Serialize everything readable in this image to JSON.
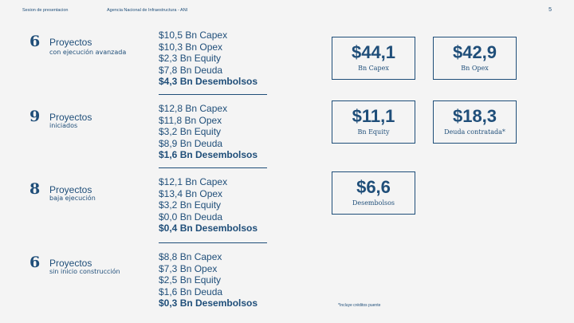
{
  "header": {
    "section": "Sesion de presentacion",
    "agency": "Agencia Nacional de Infraestructura - ANI",
    "page": "5"
  },
  "projects": [
    {
      "count": "6",
      "title": "Proyectos",
      "subtitle": "con ejecución avanzada",
      "capex": "$10,5 Bn Capex",
      "opex": "$10,3 Bn Opex",
      "equity": "$2,3 Bn Equity",
      "debt": "$7,8 Bn Deuda",
      "disb": "$4,3 Bn Desembolsos"
    },
    {
      "count": "9",
      "title": "Proyectos",
      "subtitle": "iniciados",
      "capex": "$12,8 Bn Capex",
      "opex": "$11,8 Bn Opex",
      "equity": "$3,2 Bn Equity",
      "debt": "$8,9 Bn Deuda",
      "disb": "$1,6 Bn Desembolsos"
    },
    {
      "count": "8",
      "title": "Proyectos",
      "subtitle": "baja ejecución",
      "capex": "$12,1 Bn Capex",
      "opex": "$13,4 Bn Opex",
      "equity": "$3,2 Bn Equity",
      "debt": "$0,0 Bn Deuda",
      "disb": "$0,4 Bn Desembolsos"
    },
    {
      "count": "6",
      "title": "Proyectos",
      "subtitle": "sin inicio construcción",
      "capex": "$8,8 Bn Capex",
      "opex": "$7,3 Bn Opex",
      "equity": "$2,5 Bn Equity",
      "debt": "$1,6 Bn Deuda",
      "disb": "$0,3 Bn Desembolsos"
    }
  ],
  "totals": {
    "capex": {
      "value": "$44,1",
      "label": "Bn Capex"
    },
    "opex": {
      "value": "$42,9",
      "label": "Bn Opex"
    },
    "equity": {
      "value": "$11,1",
      "label": "Bn Equity"
    },
    "debt": {
      "value": "$18,3",
      "label": "Deuda contratada*"
    },
    "disb": {
      "value": "$6,6",
      "label": "Desembolsos"
    }
  },
  "footnote": "*Incluye créditos puente",
  "colors": {
    "primary": "#1f4e79",
    "background": "#f4f4f4"
  }
}
